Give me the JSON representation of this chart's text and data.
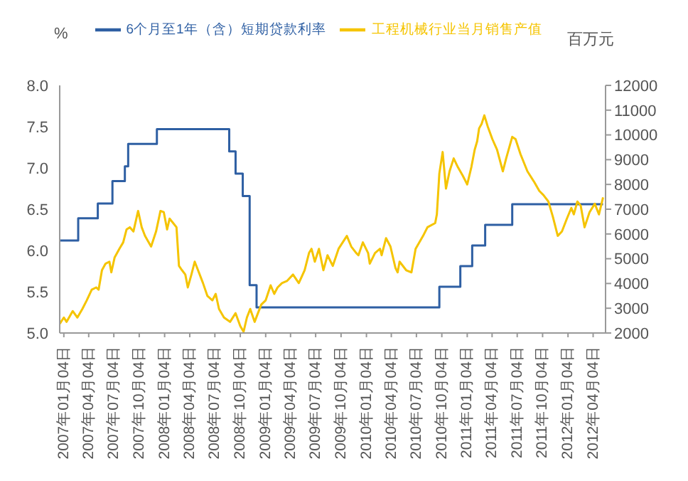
{
  "chart_data": {
    "type": "line",
    "ylabel": "%",
    "y2label": "百万元",
    "legend": "top",
    "grid": false,
    "xlim": [
      "2006-12-20",
      "2012-05-19"
    ],
    "xticks": [
      {
        "value": "2007-01-04",
        "label": "2007年01月04日"
      },
      {
        "value": "2007-04-04",
        "label": "2007年04月04日"
      },
      {
        "value": "2007-07-04",
        "label": "2007年07月04日"
      },
      {
        "value": "2007-10-04",
        "label": "2007年10月04日"
      },
      {
        "value": "2008-01-04",
        "label": "2008年01月04日"
      },
      {
        "value": "2008-04-04",
        "label": "2008年04月04日"
      },
      {
        "value": "2008-07-04",
        "label": "2008年07月04日"
      },
      {
        "value": "2008-10-04",
        "label": "2008年10月04日"
      },
      {
        "value": "2009-01-04",
        "label": "2009年01月04日"
      },
      {
        "value": "2009-04-04",
        "label": "2009年04月04日"
      },
      {
        "value": "2009-07-04",
        "label": "2009年07月04日"
      },
      {
        "value": "2009-10-04",
        "label": "2009年10月04日"
      },
      {
        "value": "2010-01-04",
        "label": "2010年01月04日"
      },
      {
        "value": "2010-04-04",
        "label": "2010年04月04日"
      },
      {
        "value": "2010-07-04",
        "label": "2010年07月04日"
      },
      {
        "value": "2010-10-04",
        "label": "2010年10月04日"
      },
      {
        "value": "2011-01-04",
        "label": "2011年01月04日"
      },
      {
        "value": "2011-04-04",
        "label": "2011年04月04日"
      },
      {
        "value": "2011-07-04",
        "label": "2011年07月04日"
      },
      {
        "value": "2011-10-04",
        "label": "2011年10月04日"
      },
      {
        "value": "2012-01-04",
        "label": "2012年01月04日"
      },
      {
        "value": "2012-04-04",
        "label": "2012年04月04日"
      }
    ],
    "ylim": [
      5,
      8
    ],
    "yticks": [
      {
        "value": 5,
        "label": "5.0"
      },
      5.5,
      {
        "value": 6,
        "label": "6.0"
      },
      6.5,
      {
        "value": 7,
        "label": "7.0"
      },
      7.5,
      {
        "value": 8,
        "label": "8.0"
      }
    ],
    "y2lim": [
      2000,
      12000
    ],
    "y2ticks": [
      2000,
      3000,
      4000,
      5000,
      6000,
      7000,
      8000,
      9000,
      10000,
      11000,
      12000
    ],
    "series": [
      {
        "name": "6个月至1年（含）短期贷款利率",
        "type": "step",
        "color": "#2e5fa3",
        "x": [
          "2006-12-20",
          "2007-02-25",
          "2007-05-07",
          "2007-06-29",
          "2007-08-13",
          "2007-08-25",
          "2007-12-07",
          "2008-08-25",
          "2008-09-17",
          "2008-10-13",
          "2008-11-07",
          "2008-12-02",
          "2010-09-25",
          "2010-12-10",
          "2011-01-22",
          "2011-03-10",
          "2011-06-16",
          "2012-05-10"
        ],
        "values": [
          6.12,
          6.39,
          6.57,
          6.84,
          7.02,
          7.29,
          7.47,
          7.2,
          6.93,
          6.66,
          5.58,
          5.31,
          5.56,
          5.81,
          6.06,
          6.31,
          6.56,
          6.56
        ]
      },
      {
        "name": "工程机械行业当月销售产值",
        "type": "line",
        "axis": "y2",
        "color": "#f5c400",
        "x": [
          "2006-12-20",
          "2007-01-04",
          "2007-01-14",
          "2007-02-05",
          "2007-02-22",
          "2007-03-12",
          "2007-03-28",
          "2007-04-15",
          "2007-05-01",
          "2007-05-10",
          "2007-05-22",
          "2007-06-04",
          "2007-06-18",
          "2007-06-25",
          "2007-07-07",
          "2007-07-24",
          "2007-08-07",
          "2007-08-19",
          "2007-08-31",
          "2007-09-13",
          "2007-09-30",
          "2007-10-13",
          "2007-10-25",
          "2007-11-16",
          "2007-12-04",
          "2007-12-20",
          "2008-01-01",
          "2008-01-13",
          "2008-01-22",
          "2008-02-04",
          "2008-02-16",
          "2008-02-25",
          "2008-03-07",
          "2008-03-19",
          "2008-03-28",
          "2008-04-10",
          "2008-04-22",
          "2008-05-04",
          "2008-05-22",
          "2008-06-07",
          "2008-06-25",
          "2008-07-07",
          "2008-07-19",
          "2008-08-06",
          "2008-08-28",
          "2008-09-17",
          "2008-10-04",
          "2008-10-16",
          "2008-10-28",
          "2008-11-09",
          "2008-11-25",
          "2008-12-07",
          "2008-12-19",
          "2009-01-04",
          "2009-01-22",
          "2009-02-04",
          "2009-02-16",
          "2009-03-04",
          "2009-03-22",
          "2009-04-13",
          "2009-05-04",
          "2009-05-25",
          "2009-06-10",
          "2009-06-19",
          "2009-07-01",
          "2009-07-16",
          "2009-08-01",
          "2009-08-16",
          "2009-09-04",
          "2009-09-25",
          "2009-10-25",
          "2009-11-10",
          "2009-11-28",
          "2009-12-06",
          "2009-12-22",
          "2010-01-10",
          "2010-01-16",
          "2010-02-04",
          "2010-02-22",
          "2010-02-28",
          "2010-03-16",
          "2010-04-01",
          "2010-04-19",
          "2010-04-27",
          "2010-05-04",
          "2010-05-28",
          "2010-06-16",
          "2010-07-01",
          "2010-07-28",
          "2010-08-13",
          "2010-09-10",
          "2010-09-16",
          "2010-09-25",
          "2010-10-07",
          "2010-10-19",
          "2010-11-01",
          "2010-11-16",
          "2010-12-01",
          "2010-12-19",
          "2011-01-04",
          "2011-01-19",
          "2011-01-31",
          "2011-02-09",
          "2011-02-16",
          "2011-02-25",
          "2011-03-07",
          "2011-03-19",
          "2011-04-05",
          "2011-04-22",
          "2011-05-13",
          "2011-05-25",
          "2011-06-16",
          "2011-06-28",
          "2011-07-16",
          "2011-08-10",
          "2011-09-04",
          "2011-09-22",
          "2011-10-07",
          "2011-10-25",
          "2011-11-10",
          "2011-11-28",
          "2011-12-13",
          "2011-12-31",
          "2012-01-16",
          "2012-01-25",
          "2012-02-07",
          "2012-02-19",
          "2012-03-04",
          "2012-03-22",
          "2012-04-10",
          "2012-04-25",
          "2012-05-10"
        ],
        "values": [
          2365,
          2625,
          2450,
          2885,
          2625,
          2970,
          3320,
          3750,
          3840,
          3750,
          4535,
          4800,
          4880,
          4450,
          5055,
          5400,
          5660,
          6180,
          6270,
          6100,
          6930,
          6270,
          5920,
          5490,
          6100,
          6930,
          6880,
          6180,
          6620,
          6440,
          6270,
          4710,
          4535,
          4360,
          3840,
          4360,
          4880,
          4535,
          4015,
          3495,
          3320,
          3580,
          2970,
          2625,
          2450,
          2800,
          2280,
          2050,
          2625,
          2970,
          2450,
          2800,
          3145,
          3320,
          3925,
          3580,
          3840,
          4015,
          4100,
          4360,
          4015,
          4535,
          5230,
          5400,
          4880,
          5400,
          4535,
          5140,
          4710,
          5400,
          5920,
          5490,
          5230,
          5140,
          5660,
          5230,
          4800,
          5230,
          5400,
          5140,
          5830,
          5490,
          4630,
          4450,
          4880,
          4535,
          4450,
          5400,
          5920,
          6270,
          6440,
          6790,
          8440,
          9310,
          7830,
          8530,
          9050,
          8700,
          8350,
          8000,
          8700,
          9400,
          9745,
          10265,
          10440,
          10790,
          10350,
          9830,
          9400,
          8530,
          9050,
          9920,
          9830,
          9220,
          8530,
          8090,
          7740,
          7570,
          7310,
          6700,
          5920,
          6100,
          6620,
          7050,
          6790,
          7310,
          7140,
          6270,
          6880,
          7220,
          6790,
          7480
        ]
      }
    ]
  }
}
